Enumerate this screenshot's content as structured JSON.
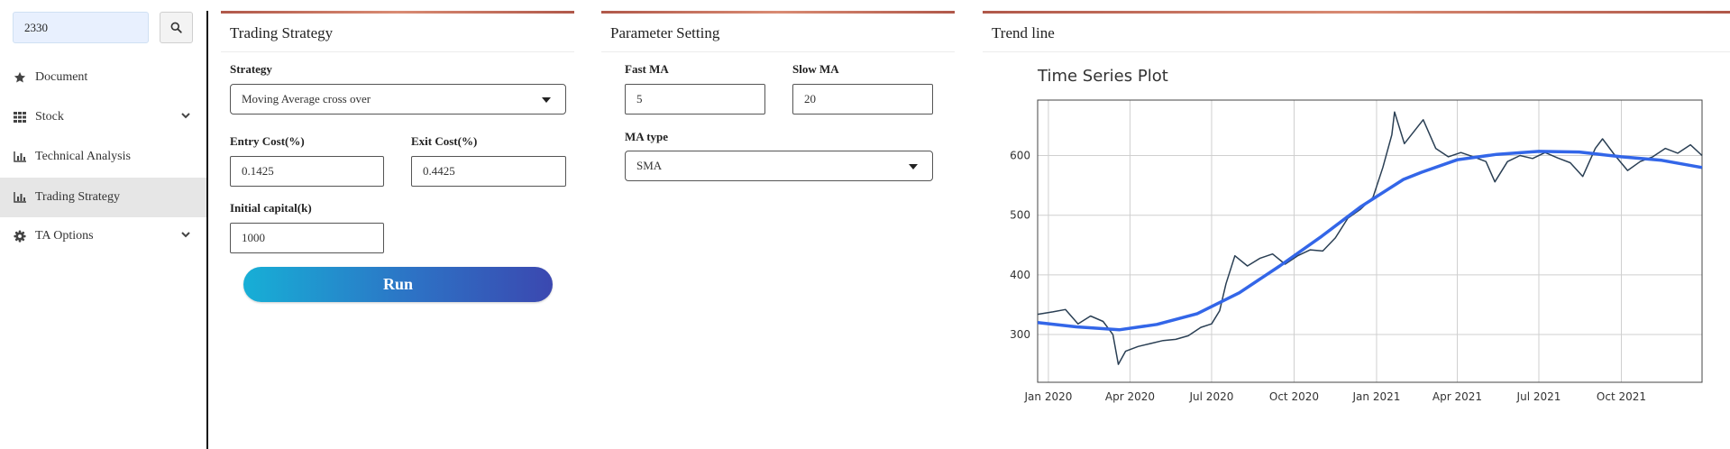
{
  "search": {
    "value": "2330"
  },
  "sidebar": {
    "items": [
      {
        "label": "Document",
        "icon": "star-icon"
      },
      {
        "label": "Stock",
        "icon": "grid-icon",
        "expandable": true
      },
      {
        "label": "Technical Analysis",
        "icon": "bar-chart-icon"
      },
      {
        "label": "Trading Strategy",
        "icon": "bar-chart-icon",
        "active": true
      },
      {
        "label": "TA Options",
        "icon": "gear-icon",
        "expandable": true
      }
    ]
  },
  "trading": {
    "title": "Trading Strategy",
    "strategy_label": "Strategy",
    "strategy_value": "Moving Average cross over",
    "entry_label": "Entry Cost(%)",
    "entry_value": "0.1425",
    "exit_label": "Exit Cost(%)",
    "exit_value": "0.4425",
    "capital_label": "Initial capital(k)",
    "capital_value": "1000",
    "run_label": "Run"
  },
  "params": {
    "title": "Parameter Setting",
    "fast_label": "Fast MA",
    "fast_value": "5",
    "slow_label": "Slow MA",
    "slow_value": "20",
    "ma_type_label": "MA type",
    "ma_type_value": "SMA"
  },
  "trend": {
    "title": "Trend line"
  },
  "colors": {
    "price_line": "#2a3f54",
    "trend_line": "#3366e8",
    "accent_border": "#c0634f"
  },
  "chart_data": {
    "type": "line",
    "title": "Time Series Plot",
    "xlabel": "",
    "ylabel": "",
    "x_ticks": [
      "Jan 2020",
      "Apr 2020",
      "Jul 2020",
      "Oct 2020",
      "Jan 2021",
      "Apr 2021",
      "Jul 2021",
      "Oct 2021"
    ],
    "y_ticks": [
      300,
      400,
      500,
      600
    ],
    "xlim": [
      "2019-12-20",
      "2021-12-30"
    ],
    "ylim": [
      220,
      693
    ],
    "grid": true,
    "legend": "none",
    "series": [
      {
        "values": [
          [
            "2019-12-20",
            334
          ],
          [
            "2020-01-06",
            338
          ],
          [
            "2020-01-20",
            342
          ],
          [
            "2020-02-03",
            318
          ],
          [
            "2020-02-17",
            331
          ],
          [
            "2020-03-02",
            322
          ],
          [
            "2020-03-13",
            300
          ],
          [
            "2020-03-19",
            250
          ],
          [
            "2020-03-27",
            272
          ],
          [
            "2020-04-10",
            280
          ],
          [
            "2020-04-24",
            285
          ],
          [
            "2020-05-08",
            290
          ],
          [
            "2020-05-22",
            292
          ],
          [
            "2020-06-05",
            298
          ],
          [
            "2020-06-19",
            312
          ],
          [
            "2020-07-01",
            318
          ],
          [
            "2020-07-10",
            340
          ],
          [
            "2020-07-17",
            385
          ],
          [
            "2020-07-27",
            432
          ],
          [
            "2020-08-10",
            415
          ],
          [
            "2020-08-24",
            428
          ],
          [
            "2020-09-07",
            435
          ],
          [
            "2020-09-21",
            418
          ],
          [
            "2020-10-05",
            432
          ],
          [
            "2020-10-19",
            442
          ],
          [
            "2020-11-02",
            440
          ],
          [
            "2020-11-16",
            462
          ],
          [
            "2020-11-30",
            495
          ],
          [
            "2020-12-14",
            510
          ],
          [
            "2020-12-28",
            530
          ],
          [
            "2021-01-08",
            580
          ],
          [
            "2021-01-18",
            635
          ],
          [
            "2021-01-21",
            673
          ],
          [
            "2021-02-01",
            620
          ],
          [
            "2021-02-22",
            660
          ],
          [
            "2021-03-08",
            612
          ],
          [
            "2021-03-22",
            598
          ],
          [
            "2021-04-05",
            605
          ],
          [
            "2021-04-19",
            598
          ],
          [
            "2021-05-03",
            590
          ],
          [
            "2021-05-13",
            556
          ],
          [
            "2021-05-27",
            590
          ],
          [
            "2021-06-10",
            600
          ],
          [
            "2021-06-24",
            595
          ],
          [
            "2021-07-08",
            605
          ],
          [
            "2021-07-22",
            596
          ],
          [
            "2021-08-05",
            588
          ],
          [
            "2021-08-19",
            565
          ],
          [
            "2021-09-02",
            612
          ],
          [
            "2021-09-10",
            628
          ],
          [
            "2021-09-24",
            600
          ],
          [
            "2021-10-08",
            575
          ],
          [
            "2021-10-22",
            590
          ],
          [
            "2021-11-05",
            598
          ],
          [
            "2021-11-19",
            612
          ],
          [
            "2021-12-03",
            604
          ],
          [
            "2021-12-17",
            618
          ],
          [
            "2021-12-30",
            600
          ]
        ]
      },
      {
        "values": [
          [
            "2019-12-20",
            320
          ],
          [
            "2020-02-01",
            313
          ],
          [
            "2020-03-20",
            308
          ],
          [
            "2020-05-01",
            317
          ],
          [
            "2020-06-15",
            335
          ],
          [
            "2020-08-01",
            370
          ],
          [
            "2020-09-15",
            415
          ],
          [
            "2020-11-01",
            465
          ],
          [
            "2020-12-15",
            515
          ],
          [
            "2021-01-31",
            560
          ],
          [
            "2021-02-20",
            572
          ],
          [
            "2021-04-01",
            593
          ],
          [
            "2021-05-15",
            602
          ],
          [
            "2021-07-01",
            607
          ],
          [
            "2021-08-15",
            606
          ],
          [
            "2021-10-01",
            598
          ],
          [
            "2021-11-15",
            592
          ],
          [
            "2021-12-30",
            580
          ]
        ]
      }
    ]
  }
}
